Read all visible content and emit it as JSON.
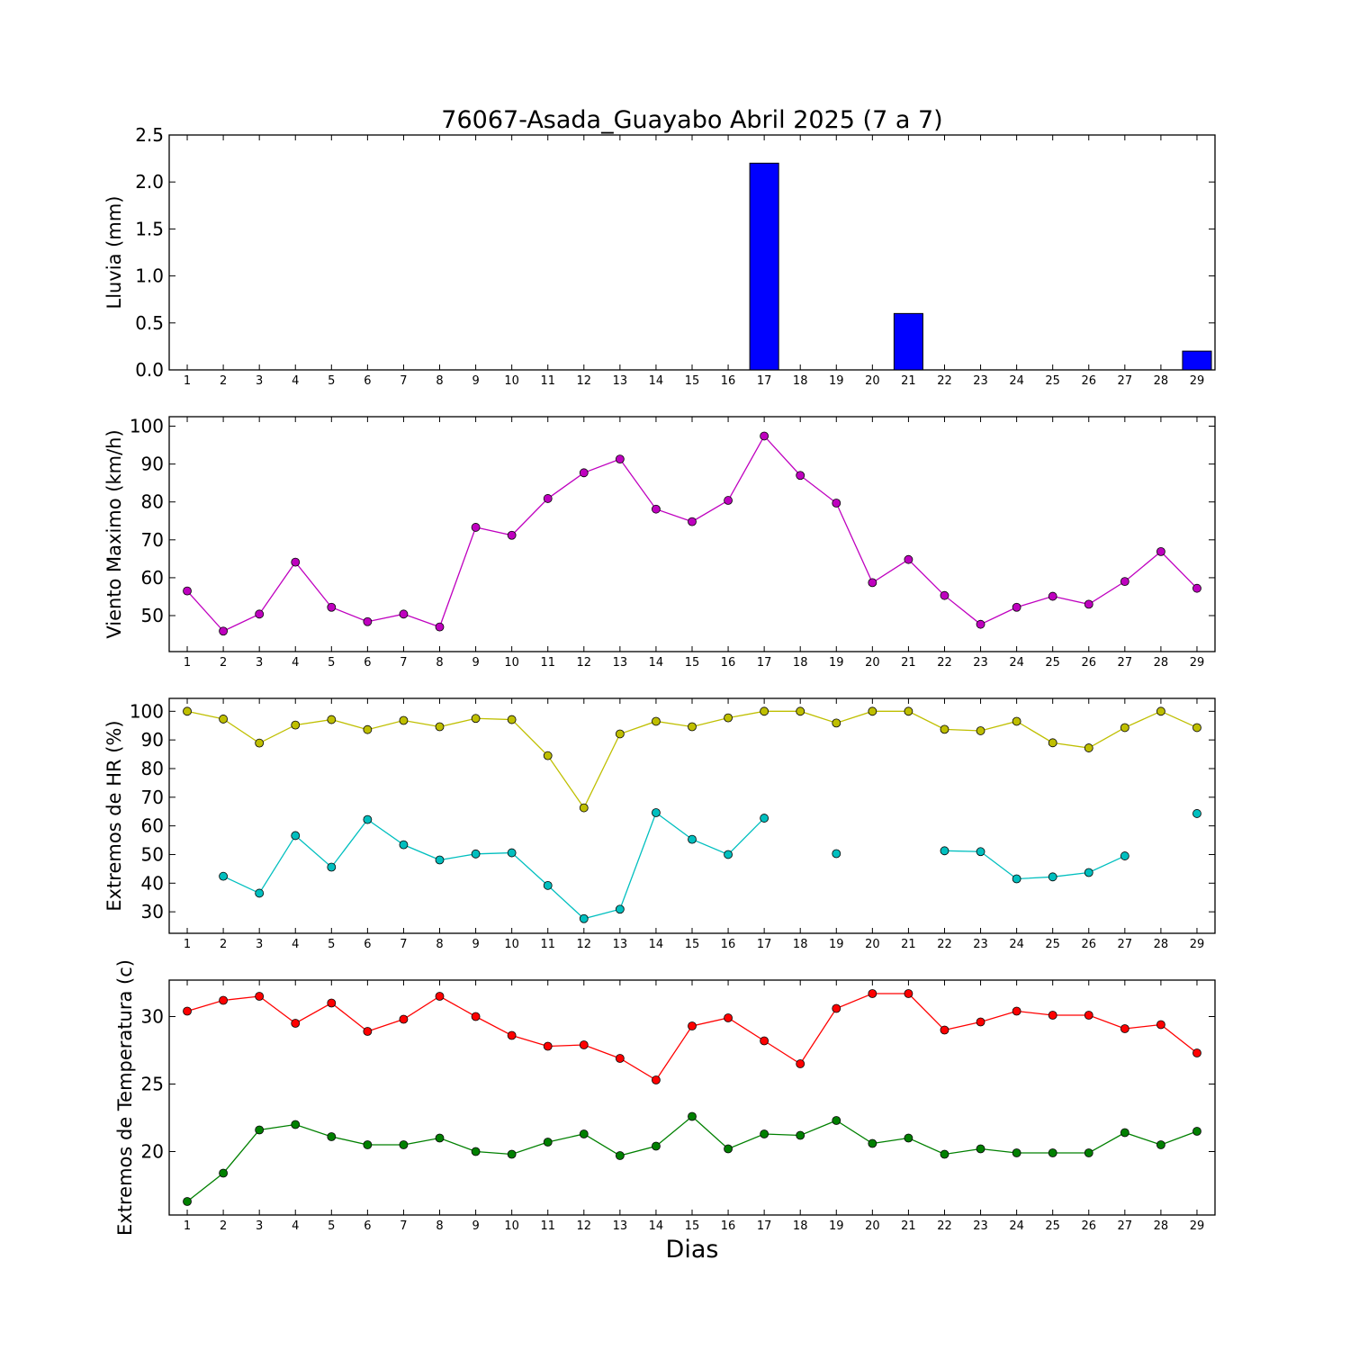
{
  "chart_data": [
    {
      "type": "bar",
      "title": "76067-Asada_Guayabo Abril 2025  (7 a 7)",
      "ylabel": "Lluvia (mm)",
      "xlabel": "",
      "ylim": [
        0,
        2.5
      ],
      "yticks": [
        "0.0",
        "0.5",
        "1.0",
        "1.5",
        "2.0",
        "2.5"
      ],
      "categories": [
        1,
        2,
        3,
        4,
        5,
        6,
        7,
        8,
        9,
        10,
        11,
        12,
        13,
        14,
        15,
        16,
        17,
        18,
        19,
        20,
        21,
        22,
        23,
        24,
        25,
        26,
        27,
        28,
        29
      ],
      "series": [
        {
          "color": "#0000ff",
          "values": [
            0,
            0,
            0,
            0,
            0,
            0,
            0,
            0,
            0,
            0,
            0,
            0,
            0,
            0,
            0,
            0,
            2.2,
            0,
            0,
            0,
            0.6,
            0,
            0,
            0,
            0,
            0,
            0,
            0,
            0.2
          ]
        }
      ],
      "grid": false
    },
    {
      "type": "line",
      "title": "",
      "ylabel": "Viento Maximo (km/h)",
      "xlabel": "",
      "ylim": [
        40.5,
        102.5
      ],
      "yticks": [
        "50",
        "60",
        "70",
        "80",
        "90",
        "100"
      ],
      "categories": [
        1,
        2,
        3,
        4,
        5,
        6,
        7,
        8,
        9,
        10,
        11,
        12,
        13,
        14,
        15,
        16,
        17,
        18,
        19,
        20,
        21,
        22,
        23,
        24,
        25,
        26,
        27,
        28,
        29
      ],
      "series": [
        {
          "color": "#bf00bf",
          "values": [
            56.5,
            45.9,
            50.4,
            64.1,
            52.2,
            48.4,
            50.4,
            47.0,
            73.3,
            71.2,
            80.9,
            87.7,
            91.3,
            78.1,
            74.8,
            80.4,
            97.4,
            87.0,
            79.7,
            58.7,
            64.8,
            55.3,
            47.7,
            52.2,
            55.1,
            53.0,
            59.0,
            66.9,
            57.2
          ]
        }
      ],
      "grid": false
    },
    {
      "type": "line",
      "title": "",
      "ylabel": "Extremos de HR (%)",
      "xlabel": "",
      "ylim": [
        22.5,
        104.5
      ],
      "yticks": [
        "30",
        "40",
        "50",
        "60",
        "70",
        "80",
        "90",
        "100"
      ],
      "categories": [
        1,
        2,
        3,
        4,
        5,
        6,
        7,
        8,
        9,
        10,
        11,
        12,
        13,
        14,
        15,
        16,
        17,
        18,
        19,
        20,
        21,
        22,
        23,
        24,
        25,
        26,
        27,
        28,
        29
      ],
      "series": [
        {
          "color": "#bfbf00",
          "values": [
            100,
            97.3,
            88.9,
            95.2,
            97.1,
            93.6,
            96.8,
            94.6,
            97.5,
            97.1,
            84.5,
            66.3,
            92.1,
            96.5,
            94.6,
            97.7,
            100,
            100,
            95.9,
            100,
            100,
            93.7,
            93.2,
            96.5,
            89.0,
            87.2,
            94.3,
            100,
            94.3
          ]
        },
        {
          "color": "#00bfbf",
          "values": [
            null,
            42.4,
            36.5,
            56.6,
            45.6,
            62.2,
            53.4,
            48.1,
            50.2,
            50.6,
            39.2,
            27.6,
            30.9,
            64.6,
            55.3,
            50.0,
            62.7,
            null,
            50.3,
            null,
            null,
            51.3,
            51.0,
            41.5,
            42.2,
            43.7,
            49.5,
            null,
            64.3
          ]
        }
      ],
      "grid": false
    },
    {
      "type": "line",
      "title": "",
      "ylabel": "Extremos de Temperatura (c)",
      "xlabel": "Dias",
      "ylim": [
        15.3,
        32.7
      ],
      "yticks": [
        "20",
        "25",
        "30"
      ],
      "categories": [
        1,
        2,
        3,
        4,
        5,
        6,
        7,
        8,
        9,
        10,
        11,
        12,
        13,
        14,
        15,
        16,
        17,
        18,
        19,
        20,
        21,
        22,
        23,
        24,
        25,
        26,
        27,
        28,
        29
      ],
      "series": [
        {
          "color": "#ff0000",
          "values": [
            30.4,
            31.2,
            31.5,
            29.5,
            31.0,
            28.9,
            29.8,
            31.5,
            30.0,
            28.6,
            27.8,
            27.9,
            26.9,
            25.3,
            29.3,
            29.9,
            28.2,
            26.5,
            30.6,
            31.7,
            31.7,
            29.0,
            29.6,
            30.4,
            30.1,
            30.1,
            29.1,
            29.4,
            27.3
          ]
        },
        {
          "color": "#008000",
          "values": [
            16.3,
            18.4,
            21.6,
            22.0,
            21.1,
            20.5,
            20.5,
            21.0,
            20.0,
            19.8,
            20.7,
            21.3,
            19.7,
            20.4,
            22.6,
            20.2,
            21.3,
            21.2,
            22.3,
            20.6,
            21.0,
            19.8,
            20.2,
            19.9,
            19.9,
            19.9,
            21.4,
            20.5,
            21.5
          ]
        }
      ],
      "grid": false
    }
  ]
}
